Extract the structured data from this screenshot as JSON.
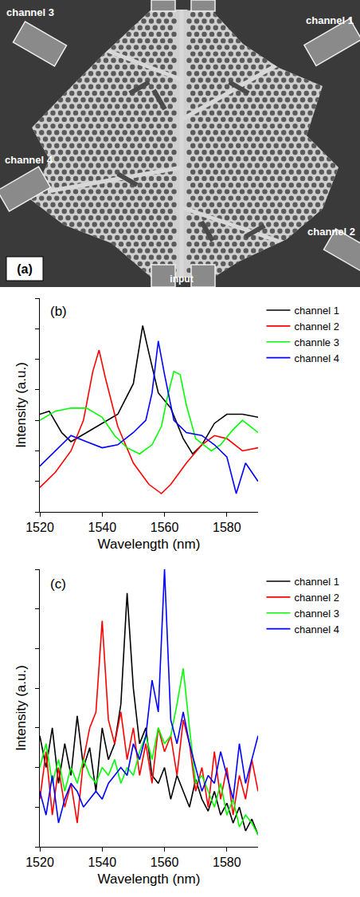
{
  "figure_a": {
    "label": "(a)",
    "input": "input",
    "channels": [
      "channel 1",
      "channel 2",
      "channel 3",
      "channel 4"
    ]
  },
  "chart_data": [
    {
      "type": "line",
      "panel": "(b)",
      "x_label": "Wavelength (nm)",
      "y_label": "Intensity (a.u.)",
      "xlim": [
        1520,
        1590
      ],
      "xticks": [
        1520,
        1540,
        1560,
        1580
      ],
      "ylim": [
        0,
        7
      ],
      "yticks": [
        0,
        1,
        2,
        3,
        4,
        5,
        6,
        7
      ],
      "tick_labels": "x",
      "legend": "right",
      "series": [
        {
          "name": "channel 1",
          "color": "#000000",
          "x": [
            1520,
            1523,
            1527,
            1530,
            1535,
            1540,
            1545,
            1550,
            1553,
            1555,
            1558,
            1562,
            1566,
            1569,
            1572,
            1576,
            1580,
            1585,
            1590
          ],
          "values": [
            3.2,
            3.3,
            2.6,
            2.3,
            2.6,
            2.9,
            3.2,
            4.2,
            6.1,
            5.2,
            3.9,
            3.4,
            2.4,
            1.9,
            2.2,
            2.9,
            3.2,
            3.2,
            3.1
          ]
        },
        {
          "name": "channel 2",
          "color": "#ff0000",
          "x": [
            1520,
            1525,
            1530,
            1534,
            1537,
            1539,
            1541,
            1545,
            1550,
            1555,
            1559,
            1562,
            1567,
            1572,
            1576,
            1580,
            1585,
            1590
          ],
          "values": [
            0.8,
            1.3,
            2.0,
            3.0,
            4.6,
            5.3,
            4.4,
            2.8,
            1.6,
            0.9,
            0.6,
            0.9,
            1.6,
            2.2,
            2.5,
            2.4,
            2.0,
            2.1
          ]
        },
        {
          "name": "channle 3",
          "color": "#00ff00",
          "x": [
            1520,
            1525,
            1530,
            1535,
            1540,
            1544,
            1548,
            1552,
            1556,
            1559,
            1561,
            1563,
            1565,
            1567,
            1570,
            1575,
            1578,
            1582,
            1585,
            1590
          ],
          "values": [
            3.0,
            3.3,
            3.4,
            3.4,
            3.1,
            2.5,
            2.1,
            1.9,
            2.2,
            2.8,
            3.8,
            4.6,
            4.5,
            3.5,
            2.4,
            2.0,
            2.2,
            2.7,
            3.0,
            2.6
          ]
        },
        {
          "name": "channel 4",
          "color": "#0000ff",
          "x": [
            1520,
            1525,
            1530,
            1535,
            1540,
            1545,
            1550,
            1554,
            1556,
            1558,
            1560,
            1563,
            1567,
            1572,
            1576,
            1580,
            1583,
            1586,
            1590
          ],
          "values": [
            1.5,
            2.0,
            2.5,
            2.3,
            2.1,
            2.2,
            2.6,
            3.0,
            3.9,
            5.6,
            4.5,
            3.0,
            2.6,
            2.5,
            2.2,
            1.8,
            0.6,
            1.6,
            1.0
          ]
        }
      ]
    },
    {
      "type": "line",
      "panel": "(c)",
      "x_label": "Wavelength (nm)",
      "y_label": "Intensity (a.u.)",
      "xlim": [
        1520,
        1590
      ],
      "xticks": [
        1520,
        1540,
        1560,
        1580
      ],
      "ylim": [
        0,
        7
      ],
      "yticks": [
        0,
        1,
        2,
        3,
        4,
        5,
        6,
        7
      ],
      "tick_labels": "x",
      "legend": "right",
      "x": [
        1520,
        1522,
        1524,
        1526,
        1528,
        1530,
        1532,
        1534,
        1536,
        1538,
        1540,
        1542,
        1544,
        1546,
        1548,
        1550,
        1552,
        1554,
        1556,
        1558,
        1560,
        1562,
        1564,
        1566,
        1568,
        1570,
        1572,
        1574,
        1576,
        1578,
        1580,
        1582,
        1584,
        1586,
        1588,
        1590
      ],
      "series": [
        {
          "name": "channel 1",
          "color": "#000000",
          "values": [
            2.8,
            2.0,
            3.0,
            1.6,
            2.6,
            1.8,
            3.3,
            2.0,
            2.5,
            1.4,
            3.0,
            2.2,
            2.6,
            3.6,
            6.4,
            4.0,
            2.6,
            3.0,
            1.8,
            1.6,
            2.0,
            1.2,
            1.8,
            1.4,
            1.0,
            1.7,
            1.2,
            0.9,
            1.4,
            0.8,
            1.1,
            0.6,
            1.0,
            0.4,
            0.7,
            0.3
          ]
        },
        {
          "name": "channel 2",
          "color": "#ff0000",
          "values": [
            1.2,
            2.4,
            0.8,
            2.0,
            1.0,
            1.6,
            0.6,
            2.2,
            3.0,
            3.4,
            5.7,
            3.2,
            2.6,
            3.4,
            2.2,
            3.0,
            1.8,
            2.6,
            1.6,
            3.0,
            2.4,
            2.8,
            1.8,
            3.2,
            2.6,
            1.4,
            2.0,
            1.0,
            2.4,
            1.2,
            2.0,
            0.8,
            1.8,
            1.2,
            2.2,
            1.4
          ]
        },
        {
          "name": "channel 3",
          "color": "#00ff00",
          "values": [
            2.0,
            2.6,
            1.6,
            2.2,
            1.4,
            2.0,
            1.6,
            2.2,
            1.8,
            1.6,
            2.0,
            1.8,
            2.2,
            1.6,
            2.0,
            1.8,
            2.4,
            2.8,
            2.2,
            3.0,
            2.6,
            2.8,
            3.6,
            4.5,
            3.0,
            1.6,
            1.8,
            1.4,
            1.0,
            1.6,
            0.8,
            1.2,
            0.5,
            0.8,
            0.6,
            0.3
          ]
        },
        {
          "name": "channel 4",
          "color": "#0000ff",
          "values": [
            1.4,
            0.8,
            1.8,
            0.6,
            1.2,
            1.6,
            1.4,
            1.0,
            1.2,
            1.4,
            1.2,
            1.6,
            1.8,
            2.0,
            1.8,
            2.6,
            2.2,
            2.8,
            4.2,
            3.4,
            7.0,
            3.2,
            2.6,
            3.4,
            2.6,
            2.0,
            1.4,
            1.8,
            1.6,
            2.4,
            1.8,
            1.2,
            2.6,
            1.6,
            2.2,
            2.8
          ]
        }
      ]
    }
  ]
}
